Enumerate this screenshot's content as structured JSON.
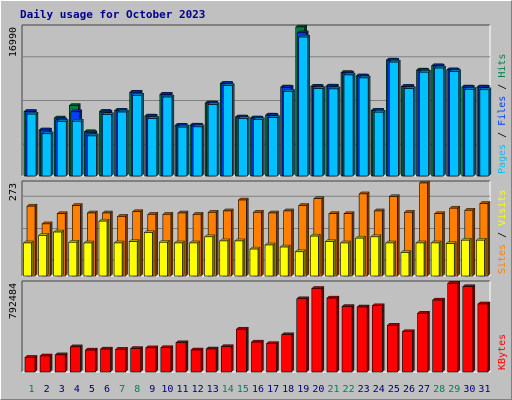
{
  "chart_data": {
    "type": "bar",
    "title": "Daily usage for October 2023",
    "categories": [
      "1",
      "2",
      "3",
      "4",
      "5",
      "6",
      "7",
      "8",
      "9",
      "10",
      "11",
      "12",
      "13",
      "14",
      "15",
      "16",
      "17",
      "18",
      "19",
      "20",
      "21",
      "22",
      "23",
      "24",
      "25",
      "26",
      "27",
      "28",
      "29",
      "30",
      "31"
    ],
    "weekend_days": [
      "1",
      "7",
      "8",
      "14",
      "15",
      "21",
      "22",
      "28",
      "29"
    ],
    "panels": [
      {
        "id": "hits-files-pages",
        "max_label": "16990",
        "ymax": 16990,
        "legend": [
          {
            "text": "Pages",
            "color": "#00c0ff"
          },
          {
            "text": " / ",
            "color": "#000000"
          },
          {
            "text": "Files",
            "color": "#0040ff"
          },
          {
            "text": " / ",
            "color": "#000000"
          },
          {
            "text": "Hits",
            "color": "#008040"
          }
        ],
        "series": [
          {
            "name": "Hits",
            "color": "#008040",
            "values": [
              7360,
              5250,
              6610,
              8040,
              5060,
              7380,
              7490,
              9550,
              6840,
              9320,
              5780,
              5800,
              8330,
              10560,
              6730,
              6620,
              6950,
              10150,
              16990,
              10230,
              10250,
              11800,
              11420,
              7490,
              13220,
              10220,
              12080,
              12580,
              12110,
              10150,
              10150
            ]
          },
          {
            "name": "Files",
            "color": "#0040ff",
            "values": [
              7350,
              5240,
              6400,
              7320,
              4920,
              7280,
              7480,
              9540,
              6800,
              9310,
              5760,
              5780,
              8320,
              10550,
              6720,
              6600,
              6900,
              10100,
              16320,
              10200,
              10240,
              11750,
              11380,
              7480,
              13180,
              10210,
              12020,
              12540,
              12080,
              10110,
              10120
            ]
          },
          {
            "name": "Pages",
            "color": "#00c0ff",
            "values": [
              7050,
              4810,
              6220,
              6240,
              4570,
              6990,
              7290,
              9200,
              6550,
              9000,
              5570,
              5600,
              8140,
              10310,
              6530,
              6430,
              6650,
              9640,
              15840,
              9960,
              9930,
              11520,
              11180,
              7270,
              12980,
              9960,
              11830,
              12300,
              11890,
              9870,
              9830
            ]
          }
        ]
      },
      {
        "id": "visits-sites",
        "max_label": "273",
        "ymax": 273,
        "legend": [
          {
            "text": "Sites",
            "color": "#ff8000"
          },
          {
            "text": " / ",
            "color": "#000000"
          },
          {
            "text": "Visits",
            "color": "#ffff00"
          }
        ],
        "series": [
          {
            "name": "Visits",
            "color": "#ffff00",
            "values": [
              97,
              119,
              129,
              99,
              97,
              161,
              97,
              101,
              127,
              99,
              97,
              97,
              115,
              103,
              103,
              79,
              91,
              85,
              71,
              117,
              101,
              97,
              111,
              115,
              97,
              69,
              97,
              97,
              95,
              105,
              105
            ]
          },
          {
            "name": "Sites",
            "color": "#ff8000",
            "values": [
              205,
              153,
              183,
              207,
              185,
              185,
              175,
              189,
              181,
              181,
              185,
              181,
              187,
              191,
              223,
              187,
              185,
              191,
              207,
              227,
              183,
              183,
              241,
              191,
              233,
              187,
              273,
              183,
              199,
              193,
              213
            ]
          }
        ]
      },
      {
        "id": "kbytes",
        "max_label": "792484",
        "ymax": 792484,
        "legend": [
          {
            "text": "KBytes",
            "color": "#ff0000"
          }
        ],
        "series": [
          {
            "name": "KBytes",
            "color": "#ff0000",
            "values": [
              130000,
              143000,
              153000,
              224000,
              195000,
              204000,
              202000,
              209000,
              215000,
              217000,
              261000,
              196000,
              205000,
              226000,
              381000,
              266000,
              253000,
              332000,
              652000,
              744000,
              658000,
              583000,
              579000,
              590000,
              416000,
              359000,
              523000,
              640000,
              790000,
              760000,
              606000
            ]
          }
        ]
      }
    ]
  }
}
